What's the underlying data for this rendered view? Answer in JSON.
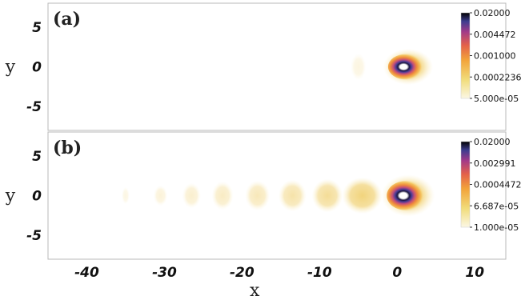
{
  "chart_data": [
    {
      "type": "heatmap",
      "panel_label": "(a)",
      "ylabel": "y",
      "xlabel": "",
      "xlim": [
        -45,
        14
      ],
      "ylim": [
        -8,
        8
      ],
      "x_ticks": [],
      "y_ticks": [
        "5",
        "0",
        "-5"
      ],
      "y_tick_values": [
        5,
        0,
        -5
      ],
      "colorbar": {
        "scale": "log",
        "range": [
          5e-05,
          0.02
        ],
        "labels": [
          "0.02000",
          "0.004472",
          "0.001000",
          "0.0002236",
          "5.000e-05"
        ]
      },
      "blobs": [
        {
          "x": 1.0,
          "y": 0,
          "rx": 2.8,
          "ry": 1.9,
          "intensity": 1.0
        },
        {
          "x": -5.0,
          "y": 0,
          "rx": 1.0,
          "ry": 1.7,
          "intensity": 0.12
        }
      ]
    },
    {
      "type": "heatmap",
      "panel_label": "(b)",
      "ylabel": "y",
      "xlabel": "x",
      "xlim": [
        -45,
        14
      ],
      "ylim": [
        -8,
        8
      ],
      "x_ticks": [
        "-40",
        "-30",
        "-20",
        "-10",
        "0",
        "10"
      ],
      "x_tick_values": [
        -40,
        -30,
        -20,
        -10,
        0,
        10
      ],
      "y_ticks": [
        "5",
        "0",
        "-5"
      ],
      "y_tick_values": [
        5,
        0,
        -5
      ],
      "colorbar": {
        "scale": "log",
        "range": [
          1e-05,
          0.02
        ],
        "labels": [
          "0.02000",
          "0.002991",
          "0.0004472",
          "6.687e-05",
          "1.000e-05"
        ]
      },
      "blobs": [
        {
          "x": 1.0,
          "y": 0,
          "rx": 3.0,
          "ry": 2.2,
          "intensity": 1.0
        },
        {
          "x": -4.5,
          "y": 0,
          "rx": 2.6,
          "ry": 2.3,
          "intensity": 0.5
        },
        {
          "x": -9.0,
          "y": 0,
          "rx": 2.0,
          "ry": 2.1,
          "intensity": 0.4
        },
        {
          "x": -13.5,
          "y": 0,
          "rx": 1.8,
          "ry": 2.0,
          "intensity": 0.33
        },
        {
          "x": -18.0,
          "y": 0,
          "rx": 1.6,
          "ry": 1.9,
          "intensity": 0.27
        },
        {
          "x": -22.5,
          "y": 0,
          "rx": 1.4,
          "ry": 1.8,
          "intensity": 0.23
        },
        {
          "x": -26.5,
          "y": 0,
          "rx": 1.2,
          "ry": 1.6,
          "intensity": 0.19
        },
        {
          "x": -30.5,
          "y": 0,
          "rx": 0.9,
          "ry": 1.3,
          "intensity": 0.15
        },
        {
          "x": -35.0,
          "y": 0,
          "rx": 0.5,
          "ry": 1.1,
          "intensity": 0.11
        }
      ]
    }
  ]
}
